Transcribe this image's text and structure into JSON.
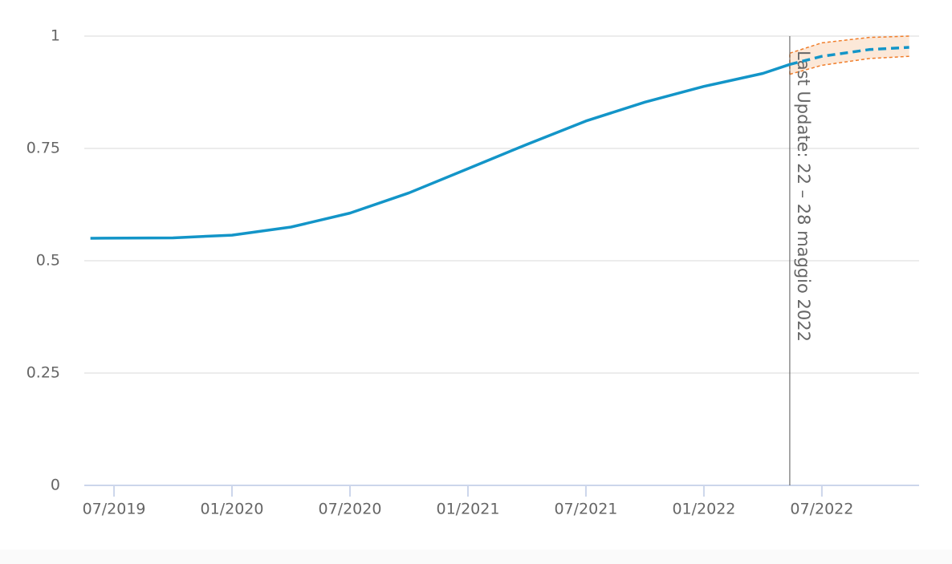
{
  "chart_data": {
    "type": "line",
    "xlim": [
      2019.374,
      2022.912
    ],
    "xticks": [
      {
        "value": 2019.5,
        "label": "07/2019"
      },
      {
        "value": 2020,
        "label": "01/2020"
      },
      {
        "value": 2020.5,
        "label": "07/2020"
      },
      {
        "value": 2021,
        "label": "01/2021"
      },
      {
        "value": 2021.5,
        "label": "07/2021"
      },
      {
        "value": 2022,
        "label": "01/2022"
      },
      {
        "value": 2022.5,
        "label": "07/2022"
      }
    ],
    "ylim": [
      0,
      1
    ],
    "yticks": [
      0,
      0.25,
      0.5,
      0.75,
      1
    ],
    "grid": true,
    "series": [
      {
        "color": "#1395c8",
        "dashed": false,
        "x": [
          2019.4,
          2019.75,
          2020.0,
          2020.25,
          2020.5,
          2020.75,
          2021.0,
          2021.25,
          2021.5,
          2021.75,
          2022.0,
          2022.25,
          2022.364
        ],
        "values": [
          0.55,
          0.551,
          0.557,
          0.575,
          0.606,
          0.651,
          0.705,
          0.759,
          0.811,
          0.853,
          0.888,
          0.917,
          0.937
        ]
      },
      {
        "color": "#1395c8",
        "dashed": true,
        "x": [
          2022.364,
          2022.5,
          2022.7,
          2022.87
        ],
        "values": [
          0.937,
          0.955,
          0.97,
          0.975
        ]
      }
    ],
    "band": {
      "color": "#f07d2a",
      "fill": "#fce8d8",
      "x": [
        2022.364,
        2022.5,
        2022.7,
        2022.87
      ],
      "low": [
        0.915,
        0.935,
        0.95,
        0.955
      ],
      "high": [
        0.962,
        0.985,
        0.997,
        1.0
      ]
    },
    "annotation": {
      "x": 2022.364,
      "text": "Last Update: 22 – 28 maggio 2022"
    }
  }
}
